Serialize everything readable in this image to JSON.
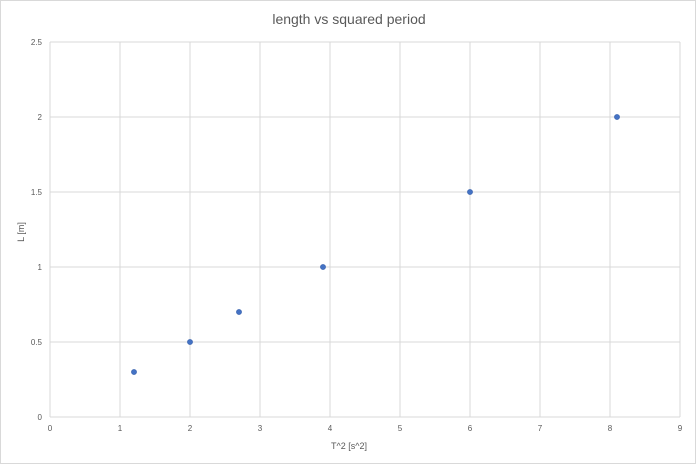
{
  "chart_data": {
    "type": "scatter",
    "title": "length vs squared period",
    "xlabel": "T^2 [s^2]",
    "ylabel": "L [m]",
    "xlim": [
      0,
      9
    ],
    "ylim": [
      0,
      2.5
    ],
    "xticks": [
      "0",
      "1",
      "2",
      "3",
      "4",
      "5",
      "6",
      "7",
      "8",
      "9"
    ],
    "yticks": [
      "0",
      "0.5",
      "1",
      "1.5",
      "2",
      "2.5"
    ],
    "grid": true,
    "series": [
      {
        "points": [
          {
            "x": 1.2,
            "y": 0.3
          },
          {
            "x": 2.0,
            "y": 0.5
          },
          {
            "x": 2.7,
            "y": 0.7
          },
          {
            "x": 3.9,
            "y": 1.0
          },
          {
            "x": 6.0,
            "y": 1.5
          },
          {
            "x": 8.1,
            "y": 2.0
          }
        ]
      }
    ],
    "colors": {
      "marker": "#4472c4",
      "grid": "#d9d9d9",
      "text": "#595959"
    }
  }
}
